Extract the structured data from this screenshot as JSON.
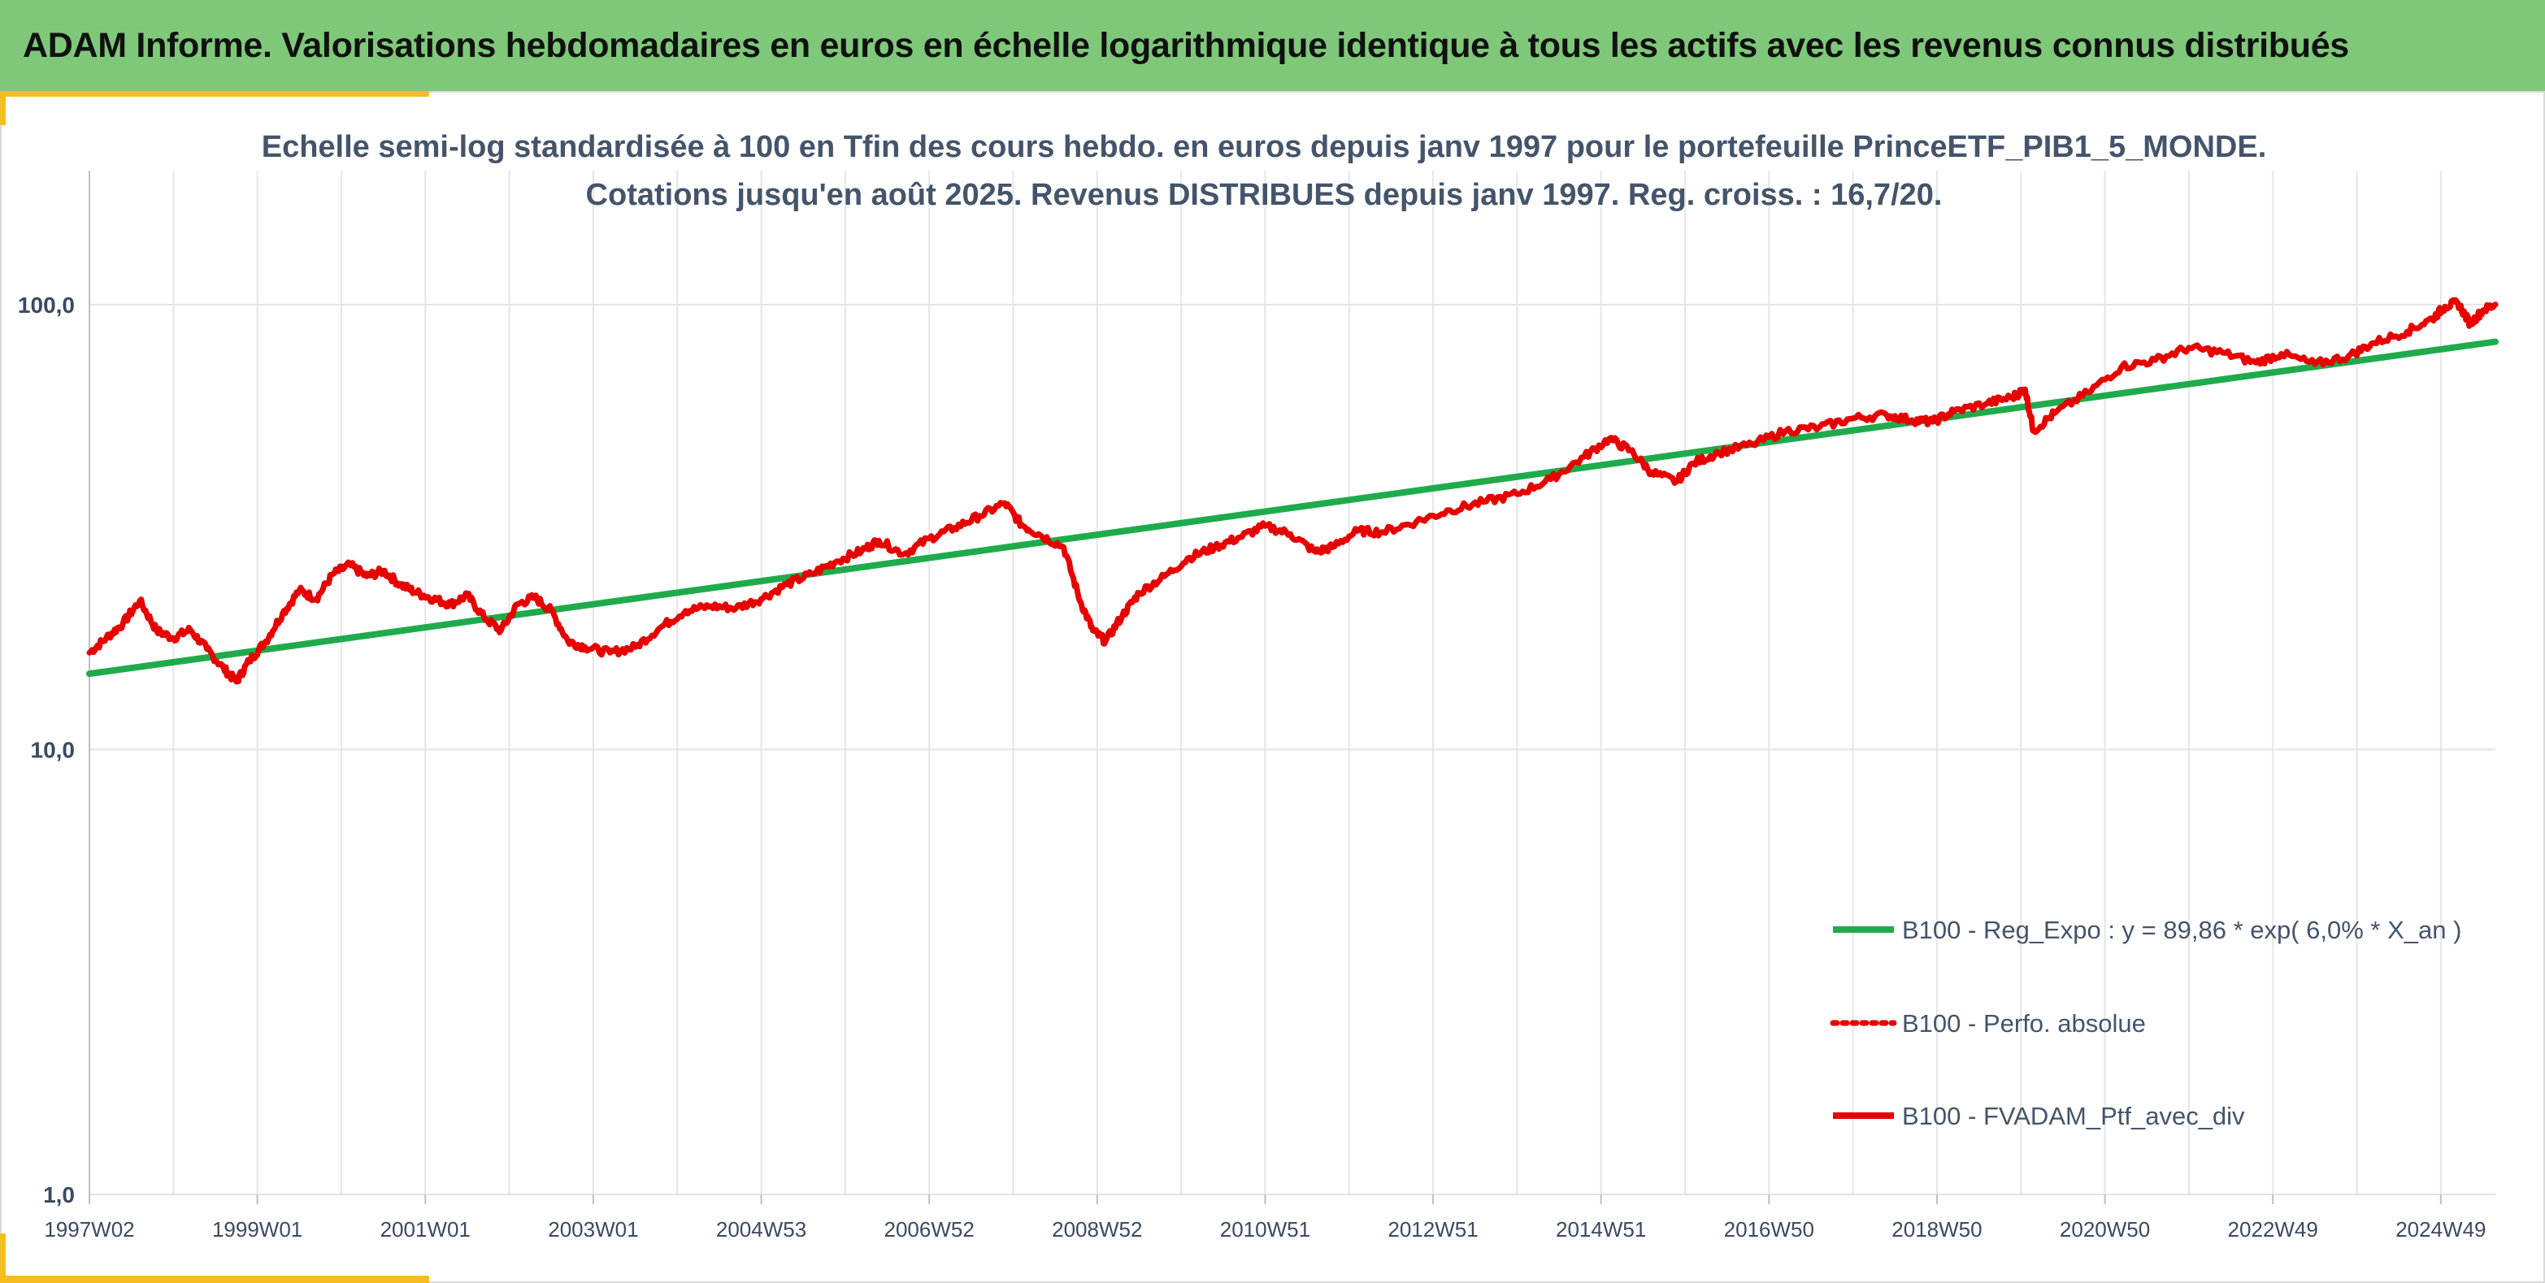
{
  "banner": {
    "title": "ADAM Informe. Valorisations hebdomadaires en euros en échelle logarithmique identique à tous les actifs avec les revenus connus distribués"
  },
  "colors": {
    "banner_bg": "#7fc87a",
    "accent_corner": "#f5bd1f",
    "regression": "#1fab4c",
    "portfolio": "#e60000",
    "text": "#44546a",
    "grid": "#e3e3e3"
  },
  "chart_data": {
    "type": "line",
    "title_lines": [
      "Echelle semi-log standardisée à 100 en Tfin des cours hebdo. en euros depuis janv 1997 pour le portefeuille PrinceETF_PIB1_5_MONDE.",
      "Cotations jusqu'en août 2025. Revenus DISTRIBUES depuis janv 1997. Reg. croiss. : 16,7/20."
    ],
    "y_scale": "log",
    "ylim": [
      1,
      200
    ],
    "y_ticks": [
      {
        "value": 1,
        "label": "1,0"
      },
      {
        "value": 10,
        "label": "10,0"
      },
      {
        "value": 100,
        "label": "100,0"
      }
    ],
    "xlim": [
      1997.0,
      2025.65
    ],
    "x_ticks": [
      {
        "value": 1997.0,
        "label": "1997W02"
      },
      {
        "value": 1999.0,
        "label": "1999W01"
      },
      {
        "value": 2001.0,
        "label": "2001W01"
      },
      {
        "value": 2003.0,
        "label": "2003W01"
      },
      {
        "value": 2005.0,
        "label": "2004W53"
      },
      {
        "value": 2007.0,
        "label": "2006W52"
      },
      {
        "value": 2009.0,
        "label": "2008W52"
      },
      {
        "value": 2011.0,
        "label": "2010W51"
      },
      {
        "value": 2013.0,
        "label": "2012W51"
      },
      {
        "value": 2015.0,
        "label": "2014W51"
      },
      {
        "value": 2017.0,
        "label": "2016W50"
      },
      {
        "value": 2019.0,
        "label": "2018W50"
      },
      {
        "value": 2021.0,
        "label": "2020W50"
      },
      {
        "value": 2023.0,
        "label": "2022W49"
      },
      {
        "value": 2025.0,
        "label": "2024W49"
      }
    ],
    "grid": true,
    "legend_position": "bottom-right",
    "series": [
      {
        "name": "B100 - Reg_Expo : y = 89,86 * exp( 6,0% *  X_an )",
        "style": "solid-green",
        "x": [
          1997.0,
          2025.65
        ],
        "values": [
          14.8,
          82.5
        ]
      },
      {
        "name": "B100 - Perfo. absolue",
        "style": "dotted-red",
        "x": [],
        "values": []
      },
      {
        "name": "B100 - FVADAM_Ptf_avec_div",
        "style": "solid-red",
        "x": [
          1997.0,
          1997.2,
          1997.4,
          1997.6,
          1997.8,
          1998.0,
          1998.2,
          1998.4,
          1998.6,
          1998.75,
          1998.9,
          1999.1,
          1999.3,
          1999.5,
          1999.7,
          1999.9,
          2000.1,
          2000.3,
          2000.5,
          2000.7,
          2000.9,
          2001.1,
          2001.3,
          2001.5,
          2001.7,
          2001.9,
          2002.1,
          2002.3,
          2002.5,
          2002.7,
          2002.9,
          2003.2,
          2003.5,
          2003.8,
          2004.1,
          2004.4,
          2004.7,
          2005.0,
          2005.3,
          2005.6,
          2005.9,
          2006.2,
          2006.4,
          2006.7,
          2007.0,
          2007.3,
          2007.6,
          2007.9,
          2008.1,
          2008.3,
          2008.6,
          2008.8,
          2008.95,
          2009.1,
          2009.3,
          2009.5,
          2009.8,
          2010.1,
          2010.4,
          2010.7,
          2011.0,
          2011.3,
          2011.6,
          2011.8,
          2012.1,
          2012.4,
          2012.8,
          2013.2,
          2013.6,
          2014.0,
          2014.4,
          2014.8,
          2015.1,
          2015.35,
          2015.6,
          2015.9,
          2016.1,
          2016.4,
          2016.8,
          2017.2,
          2017.6,
          2018.0,
          2018.4,
          2018.7,
          2018.95,
          2019.2,
          2019.6,
          2019.9,
          2020.05,
          2020.15,
          2020.4,
          2020.8,
          2021.2,
          2021.6,
          2022.0,
          2022.4,
          2022.8,
          2023.1,
          2023.5,
          2023.9,
          2024.2,
          2024.6,
          2024.9,
          2025.05,
          2025.2,
          2025.35,
          2025.5,
          2025.65
        ],
        "values": [
          16.5,
          17.8,
          19.2,
          21.6,
          18.5,
          17.8,
          18.6,
          16.8,
          15.2,
          14.2,
          15.8,
          17.5,
          20.2,
          22.8,
          21.8,
          24.8,
          26.0,
          24.5,
          25.2,
          23.5,
          22.5,
          21.8,
          21.2,
          22.2,
          19.8,
          18.5,
          21.2,
          22.0,
          20.5,
          17.5,
          17.0,
          16.5,
          17.0,
          18.8,
          20.5,
          21.0,
          20.8,
          21.8,
          23.5,
          24.8,
          26.5,
          28.0,
          29.5,
          27.5,
          29.8,
          31.5,
          33.5,
          35.8,
          32.0,
          30.5,
          28.5,
          21.5,
          18.5,
          17.5,
          20.0,
          22.5,
          24.5,
          27.0,
          28.5,
          30.0,
          31.8,
          30.5,
          27.8,
          28.5,
          31.0,
          30.8,
          32.5,
          34.5,
          36.0,
          37.5,
          40.5,
          45.5,
          50.0,
          47.0,
          42.0,
          40.0,
          44.0,
          46.5,
          48.5,
          52.0,
          53.0,
          55.5,
          56.5,
          55.0,
          54.5,
          57.5,
          60.0,
          62.0,
          64.5,
          52.0,
          57.0,
          63.5,
          72.5,
          75.0,
          80.0,
          78.0,
          74.0,
          77.5,
          73.5,
          76.5,
          82.0,
          87.0,
          93.0,
          99.0,
          101.0,
          90.5,
          97.0,
          100.0
        ]
      }
    ]
  }
}
